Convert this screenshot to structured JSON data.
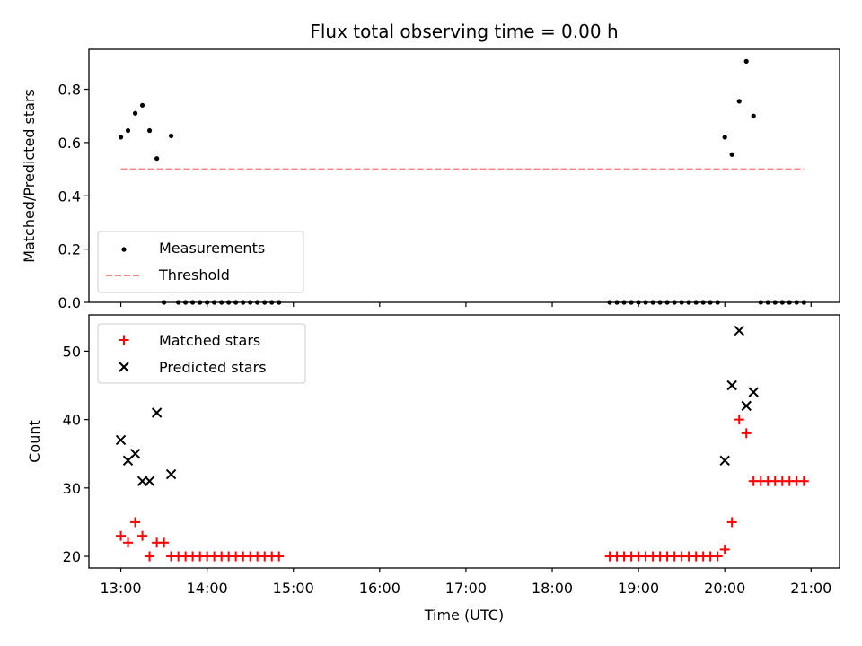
{
  "chart_data": [
    {
      "type": "scatter",
      "title": "Flux total observing time = 0.00 h",
      "ylabel": "Matched/Predicted stars",
      "xlabel": "",
      "xlim": [
        12.63,
        21.33
      ],
      "ylim": [
        0.0,
        0.95
      ],
      "yticks": [
        0.0,
        0.2,
        0.4,
        0.6,
        0.8
      ],
      "ytick_labels": [
        "0.0",
        "0.2",
        "0.4",
        "0.6",
        "0.8"
      ],
      "xticks": [
        13,
        14,
        15,
        16,
        17,
        18,
        19,
        20,
        21
      ],
      "show_xtick_labels": false,
      "grid": false,
      "legend_position": "lower-left",
      "legend": [
        "Measurements",
        "Threshold"
      ],
      "series": [
        {
          "name": "Measurements",
          "marker": "dot",
          "color": "#000000",
          "points": [
            [
              13.0,
              0.62
            ],
            [
              13.083,
              0.645
            ],
            [
              13.167,
              0.71
            ],
            [
              13.25,
              0.74
            ],
            [
              13.333,
              0.645
            ],
            [
              13.417,
              0.54
            ],
            [
              13.583,
              0.625
            ],
            [
              13.5,
              0.0
            ],
            [
              13.667,
              0.0
            ],
            [
              13.75,
              0.0
            ],
            [
              13.833,
              0.0
            ],
            [
              13.917,
              0.0
            ],
            [
              14.0,
              0.0
            ],
            [
              14.083,
              0.0
            ],
            [
              14.167,
              0.0
            ],
            [
              14.25,
              0.0
            ],
            [
              14.333,
              0.0
            ],
            [
              14.417,
              0.0
            ],
            [
              14.5,
              0.0
            ],
            [
              14.583,
              0.0
            ],
            [
              14.667,
              0.0
            ],
            [
              14.75,
              0.0
            ],
            [
              14.833,
              0.0
            ],
            [
              18.667,
              0.0
            ],
            [
              18.75,
              0.0
            ],
            [
              18.833,
              0.0
            ],
            [
              18.917,
              0.0
            ],
            [
              19.0,
              0.0
            ],
            [
              19.083,
              0.0
            ],
            [
              19.167,
              0.0
            ],
            [
              19.25,
              0.0
            ],
            [
              19.333,
              0.0
            ],
            [
              19.417,
              0.0
            ],
            [
              19.5,
              0.0
            ],
            [
              19.583,
              0.0
            ],
            [
              19.667,
              0.0
            ],
            [
              19.75,
              0.0
            ],
            [
              19.833,
              0.0
            ],
            [
              19.917,
              0.0
            ],
            [
              20.0,
              0.62
            ],
            [
              20.083,
              0.555
            ],
            [
              20.167,
              0.755
            ],
            [
              20.25,
              0.905
            ],
            [
              20.333,
              0.7
            ],
            [
              20.417,
              0.0
            ],
            [
              20.5,
              0.0
            ],
            [
              20.583,
              0.0
            ],
            [
              20.667,
              0.0
            ],
            [
              20.75,
              0.0
            ],
            [
              20.833,
              0.0
            ],
            [
              20.917,
              0.0
            ]
          ]
        },
        {
          "name": "Threshold",
          "type": "line",
          "style": "dashed",
          "color": "#ff7f7f",
          "points": [
            [
              13.0,
              0.5
            ],
            [
              20.917,
              0.5
            ]
          ]
        }
      ]
    },
    {
      "type": "scatter",
      "title": "",
      "xlabel": "Time (UTC)",
      "ylabel": "Count",
      "xlim": [
        12.63,
        21.33
      ],
      "ylim": [
        18.3,
        55.3
      ],
      "yticks": [
        20,
        30,
        40,
        50
      ],
      "ytick_labels": [
        "20",
        "30",
        "40",
        "50"
      ],
      "xticks": [
        13,
        14,
        15,
        16,
        17,
        18,
        19,
        20,
        21
      ],
      "xtick_labels": [
        "13:00",
        "14:00",
        "15:00",
        "16:00",
        "17:00",
        "18:00",
        "19:00",
        "20:00",
        "21:00"
      ],
      "grid": false,
      "legend_position": "upper-left",
      "legend": [
        "Matched stars",
        "Predicted stars"
      ],
      "series": [
        {
          "name": "Matched stars",
          "marker": "plus",
          "color": "#ff0000",
          "points": [
            [
              13.0,
              23
            ],
            [
              13.083,
              22
            ],
            [
              13.167,
              25
            ],
            [
              13.25,
              23
            ],
            [
              13.333,
              20
            ],
            [
              13.417,
              22
            ],
            [
              13.5,
              22
            ],
            [
              13.583,
              20
            ],
            [
              13.667,
              20
            ],
            [
              13.75,
              20
            ],
            [
              13.833,
              20
            ],
            [
              13.917,
              20
            ],
            [
              14.0,
              20
            ],
            [
              14.083,
              20
            ],
            [
              14.167,
              20
            ],
            [
              14.25,
              20
            ],
            [
              14.333,
              20
            ],
            [
              14.417,
              20
            ],
            [
              14.5,
              20
            ],
            [
              14.583,
              20
            ],
            [
              14.667,
              20
            ],
            [
              14.75,
              20
            ],
            [
              14.833,
              20
            ],
            [
              18.667,
              20
            ],
            [
              18.75,
              20
            ],
            [
              18.833,
              20
            ],
            [
              18.917,
              20
            ],
            [
              19.0,
              20
            ],
            [
              19.083,
              20
            ],
            [
              19.167,
              20
            ],
            [
              19.25,
              20
            ],
            [
              19.333,
              20
            ],
            [
              19.417,
              20
            ],
            [
              19.5,
              20
            ],
            [
              19.583,
              20
            ],
            [
              19.667,
              20
            ],
            [
              19.75,
              20
            ],
            [
              19.833,
              20
            ],
            [
              19.917,
              20
            ],
            [
              20.0,
              21
            ],
            [
              20.083,
              25
            ],
            [
              20.167,
              40
            ],
            [
              20.25,
              38
            ],
            [
              20.333,
              31
            ],
            [
              20.417,
              31
            ],
            [
              20.5,
              31
            ],
            [
              20.583,
              31
            ],
            [
              20.667,
              31
            ],
            [
              20.75,
              31
            ],
            [
              20.833,
              31
            ],
            [
              20.917,
              31
            ]
          ]
        },
        {
          "name": "Predicted stars",
          "marker": "x",
          "color": "#000000",
          "points": [
            [
              13.0,
              37
            ],
            [
              13.083,
              34
            ],
            [
              13.167,
              35
            ],
            [
              13.25,
              31
            ],
            [
              13.333,
              31
            ],
            [
              13.417,
              41
            ],
            [
              13.583,
              32
            ],
            [
              20.0,
              34
            ],
            [
              20.083,
              45
            ],
            [
              20.167,
              53
            ],
            [
              20.25,
              42
            ],
            [
              20.333,
              44
            ]
          ]
        }
      ]
    }
  ]
}
